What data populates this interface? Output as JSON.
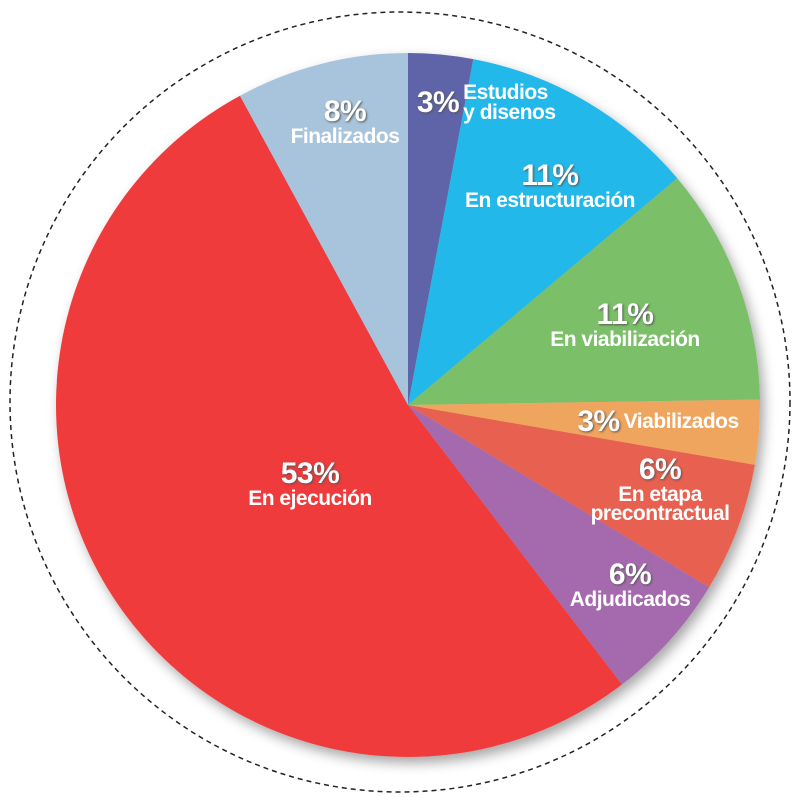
{
  "chart_data": {
    "type": "pie",
    "categories": [
      "Estudios y disenos",
      "En estructuración",
      "En viabilización",
      "Viabilizados",
      "En etapa precontractual",
      "Adjudicados",
      "En ejecución",
      "Finalizados"
    ],
    "values": [
      3,
      11,
      11,
      3,
      6,
      6,
      53,
      8
    ],
    "value_labels": [
      "3%",
      "11%",
      "11%",
      "3%",
      "6%",
      "6%",
      "53%",
      "8%"
    ],
    "colors": [
      "#5f63a8",
      "#20b9ea",
      "#7cbf69",
      "#f0a55e",
      "#e8604f",
      "#a56aae",
      "#ef3a3b",
      "#a8c4dc"
    ]
  }
}
